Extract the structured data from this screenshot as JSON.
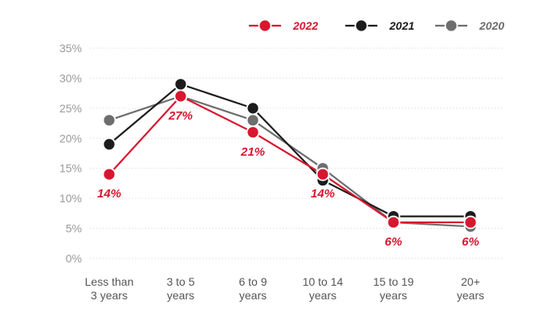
{
  "chart_data": {
    "type": "line",
    "title": "",
    "xlabel": "",
    "ylabel": "",
    "categories": [
      [
        "Less than",
        "3 years"
      ],
      [
        "3 to 5",
        "years"
      ],
      [
        "6 to 9",
        "years"
      ],
      [
        "10 to 14",
        "years"
      ],
      [
        "15 to 19",
        "years"
      ],
      [
        "20+",
        "years"
      ]
    ],
    "ylim": [
      0,
      35
    ],
    "yticks": [
      0,
      5,
      10,
      15,
      20,
      25,
      30,
      35
    ],
    "ytick_suffix": "%",
    "grid": true,
    "legend_position": "top-right",
    "series": [
      {
        "name": "2020",
        "color": "#6e6e6e",
        "values": [
          23,
          27,
          23,
          15,
          6,
          5.3
        ]
      },
      {
        "name": "2021",
        "color": "#1c1c1c",
        "values": [
          19,
          29,
          25,
          13,
          7,
          7
        ]
      },
      {
        "name": "2022",
        "color": "#d7172f",
        "values": [
          14,
          27,
          21,
          14,
          6,
          6
        ],
        "labels": [
          "14%",
          "27%",
          "21%",
          "14%",
          "6%",
          "6%"
        ]
      }
    ],
    "legend_order": [
      "2022",
      "2021",
      "2020"
    ]
  }
}
